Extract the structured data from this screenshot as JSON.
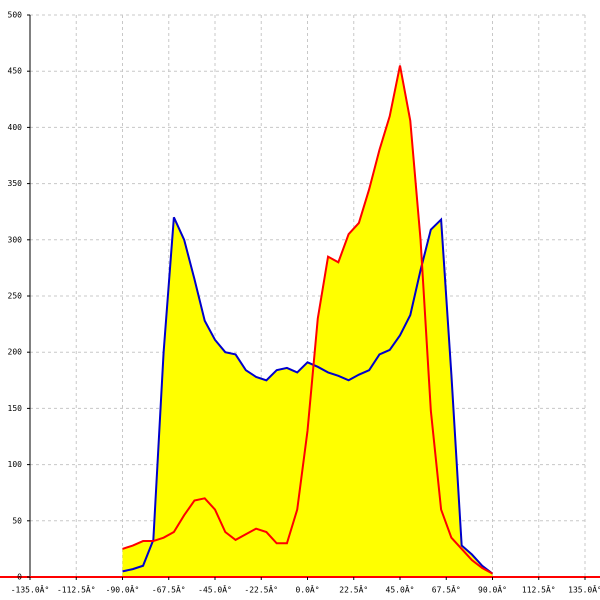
{
  "chart_data": {
    "type": "area",
    "x": [
      -90,
      -85,
      -80,
      -75,
      -70,
      -65,
      -60,
      -55,
      -50,
      -45,
      -40,
      -35,
      -30,
      -25,
      -20,
      -15,
      -10,
      -5,
      0,
      5,
      10,
      15,
      20,
      25,
      30,
      35,
      40,
      45,
      50,
      55,
      60,
      65,
      70,
      75,
      80,
      85,
      90
    ],
    "fill": "#ffff00",
    "series": [
      {
        "color": "#0000cc",
        "values": [
          5,
          7,
          10,
          33,
          200,
          320,
          300,
          265,
          228,
          211,
          200,
          198,
          184,
          178,
          175,
          184,
          186,
          182,
          191,
          187,
          182,
          179,
          175,
          180,
          184,
          198,
          202,
          215,
          233,
          273,
          309,
          318,
          180,
          28,
          20,
          10,
          3
        ]
      },
      {
        "color": "#ff0000",
        "values": [
          25,
          28,
          32,
          32,
          35,
          40,
          55,
          68,
          70,
          60,
          40,
          33,
          38,
          43,
          40,
          30,
          30,
          60,
          130,
          230,
          285,
          280,
          305,
          315,
          345,
          380,
          410,
          455,
          406,
          300,
          148,
          60,
          35,
          25,
          15,
          8,
          3
        ]
      }
    ],
    "xlim": [
      -135,
      135
    ],
    "xticks": [
      {
        "value": -135,
        "label": "-135.0Â°"
      },
      {
        "value": -112.5,
        "label": "-112.5Â°"
      },
      {
        "value": -90,
        "label": "-90.0Â°"
      },
      {
        "value": -67.5,
        "label": "-67.5Â°"
      },
      {
        "value": -45,
        "label": "-45.0Â°"
      },
      {
        "value": -22.5,
        "label": "-22.5Â°"
      },
      {
        "value": 0,
        "label": "0.0Â°"
      },
      {
        "value": 22.5,
        "label": "22.5Â°"
      },
      {
        "value": 45,
        "label": "45.0Â°"
      },
      {
        "value": 67.5,
        "label": "67.5Â°"
      },
      {
        "value": 90,
        "label": "90.0Â°"
      },
      {
        "value": 112.5,
        "label": "112.5Â°"
      },
      {
        "value": 135,
        "label": "135.0Â°"
      }
    ],
    "ylim": [
      0,
      500
    ],
    "yticks": [
      0,
      50,
      100,
      150,
      200,
      250,
      300,
      350,
      400,
      450,
      500
    ],
    "grid": true
  }
}
